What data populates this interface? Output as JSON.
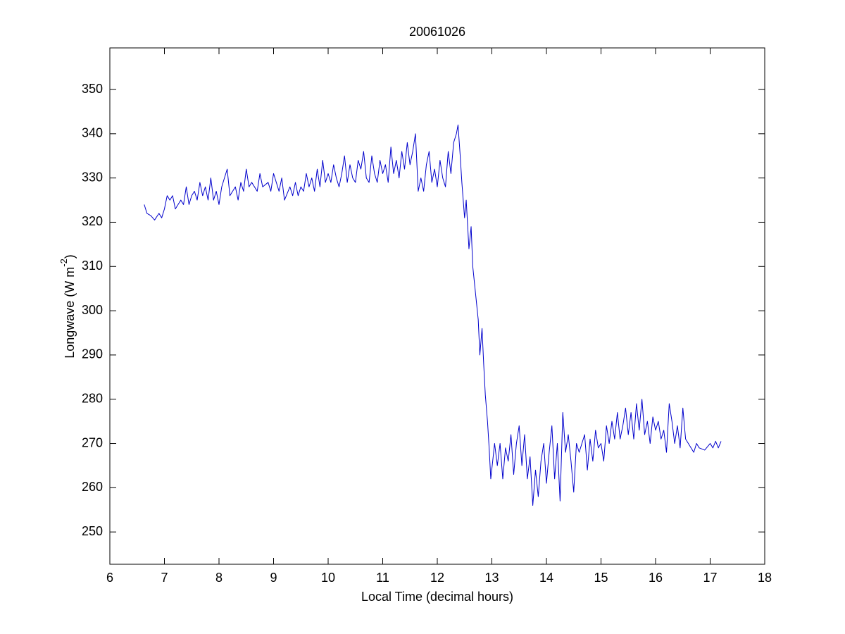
{
  "chart_data": {
    "type": "line",
    "title": "20061026",
    "xlabel": "Local Time (decimal hours)",
    "ylabel": {
      "text": "Longwave (W m",
      "superscript": "-2",
      "suffix": ")"
    },
    "xlim": [
      6,
      18
    ],
    "ylim": [
      242.7,
      359.4
    ],
    "xticks": [
      6,
      7,
      8,
      9,
      10,
      11,
      12,
      13,
      14,
      15,
      16,
      17,
      18
    ],
    "yticks": [
      250,
      260,
      270,
      280,
      290,
      300,
      310,
      320,
      330,
      340,
      350
    ],
    "grid": false,
    "color": "#0000cc",
    "x": [
      6.63,
      6.68,
      6.75,
      6.82,
      6.9,
      6.95,
      7.0,
      7.05,
      7.1,
      7.15,
      7.2,
      7.3,
      7.35,
      7.4,
      7.45,
      7.5,
      7.55,
      7.6,
      7.65,
      7.7,
      7.75,
      7.8,
      7.85,
      7.9,
      7.95,
      8.0,
      8.05,
      8.1,
      8.15,
      8.2,
      8.3,
      8.35,
      8.4,
      8.45,
      8.5,
      8.55,
      8.6,
      8.7,
      8.75,
      8.8,
      8.9,
      8.95,
      9.0,
      9.05,
      9.1,
      9.15,
      9.2,
      9.3,
      9.35,
      9.4,
      9.45,
      9.5,
      9.55,
      9.6,
      9.65,
      9.7,
      9.75,
      9.8,
      9.85,
      9.9,
      9.95,
      10.0,
      10.05,
      10.1,
      10.15,
      10.2,
      10.25,
      10.3,
      10.35,
      10.4,
      10.45,
      10.5,
      10.55,
      10.6,
      10.65,
      10.7,
      10.75,
      10.8,
      10.85,
      10.9,
      10.95,
      11.0,
      11.05,
      11.1,
      11.15,
      11.2,
      11.25,
      11.3,
      11.35,
      11.4,
      11.45,
      11.5,
      11.55,
      11.6,
      11.65,
      11.7,
      11.75,
      11.8,
      11.85,
      11.9,
      11.95,
      12.0,
      12.05,
      12.1,
      12.15,
      12.2,
      12.25,
      12.3,
      12.35,
      12.38,
      12.42,
      12.45,
      12.5,
      12.53,
      12.58,
      12.62,
      12.65,
      12.7,
      12.75,
      12.78,
      12.82,
      12.85,
      12.88,
      12.92,
      12.95,
      12.98,
      13.05,
      13.1,
      13.15,
      13.2,
      13.25,
      13.3,
      13.35,
      13.4,
      13.45,
      13.5,
      13.55,
      13.6,
      13.65,
      13.7,
      13.75,
      13.8,
      13.85,
      13.9,
      13.95,
      14.0,
      14.05,
      14.1,
      14.15,
      14.2,
      14.25,
      14.3,
      14.35,
      14.4,
      14.45,
      14.5,
      14.55,
      14.6,
      14.7,
      14.75,
      14.8,
      14.85,
      14.9,
      14.95,
      15.0,
      15.05,
      15.1,
      15.15,
      15.2,
      15.25,
      15.3,
      15.35,
      15.4,
      15.45,
      15.5,
      15.55,
      15.6,
      15.65,
      15.7,
      15.75,
      15.8,
      15.85,
      15.9,
      15.95,
      16.0,
      16.05,
      16.1,
      16.15,
      16.2,
      16.25,
      16.3,
      16.35,
      16.4,
      16.45,
      16.5,
      16.55,
      16.6,
      16.7,
      16.75,
      16.8,
      16.9,
      17.0,
      17.05,
      17.1,
      17.15,
      17.2
    ],
    "values": [
      324,
      322,
      321.5,
      320.5,
      322,
      321,
      323,
      326,
      325,
      326,
      323,
      325,
      324,
      328,
      324,
      326,
      327,
      325,
      329,
      326,
      328,
      325,
      330,
      325,
      327,
      324,
      328,
      330,
      332,
      326,
      328,
      325,
      329,
      327,
      332,
      328,
      329,
      327,
      331,
      328,
      329,
      327,
      331,
      329,
      327,
      330,
      325,
      328,
      326,
      329,
      326,
      328,
      327,
      331,
      328,
      330,
      327,
      332,
      328,
      334,
      329,
      331,
      329,
      333,
      330,
      328,
      331,
      335,
      329,
      333,
      330,
      329,
      334,
      332,
      336,
      330,
      329,
      335,
      331,
      329,
      334,
      331,
      333,
      329,
      337,
      331,
      334,
      330,
      336,
      332,
      338,
      333,
      336,
      340,
      327,
      330,
      327,
      333,
      336,
      329,
      332,
      328,
      334,
      330,
      328,
      336,
      331,
      338,
      340,
      342,
      335,
      329,
      321,
      325,
      314,
      319,
      310,
      304,
      298,
      290,
      296,
      288,
      281,
      275,
      269,
      262,
      270,
      265,
      270,
      262,
      269,
      266,
      272,
      263,
      270,
      274,
      265,
      272,
      262,
      267,
      256,
      264,
      258,
      266,
      270,
      261,
      268,
      274,
      262,
      270,
      257,
      277,
      268,
      272,
      266,
      259,
      270,
      268,
      272,
      264,
      271,
      266,
      273,
      269,
      270,
      266,
      274,
      270,
      275,
      271,
      277,
      271,
      274,
      278,
      272,
      277,
      271,
      279,
      273,
      280,
      272,
      275,
      270,
      276,
      273,
      275,
      271,
      273,
      268,
      279,
      275,
      270,
      274,
      269,
      278,
      271,
      270,
      268,
      270,
      269,
      268.5,
      270,
      269,
      270.5,
      269,
      270.5
    ]
  }
}
